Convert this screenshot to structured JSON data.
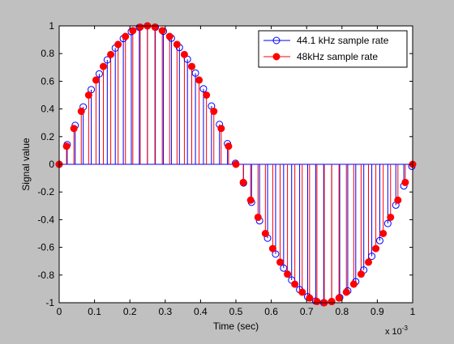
{
  "chart_data": {
    "type": "stem",
    "xlabel": "Time (sec)",
    "ylabel": "Signal value",
    "x_multiplier_label": "x 10",
    "x_multiplier_exponent": "-3",
    "xlim": [
      0,
      1
    ],
    "ylim": [
      -1,
      1
    ],
    "xticks": [
      0,
      0.1,
      0.2,
      0.3,
      0.4,
      0.5,
      0.6,
      0.7,
      0.8,
      0.9,
      1
    ],
    "xtick_labels": [
      "0",
      "0.1",
      "0.2",
      "0.3",
      "0.4",
      "0.5",
      "0.6",
      "0.7",
      "0.8",
      "0.9",
      "1"
    ],
    "yticks": [
      -1,
      -0.8,
      -0.6,
      -0.4,
      -0.2,
      0,
      0.2,
      0.4,
      0.6,
      0.8,
      1
    ],
    "ytick_labels": [
      "-1",
      "-0.8",
      "-0.6",
      "-0.4",
      "-0.2",
      "0",
      "0.2",
      "0.4",
      "0.6",
      "0.8",
      "1"
    ],
    "grid": false,
    "legend_position": "top-right",
    "signal_frequency_hz": 1000,
    "series": [
      {
        "name": "44.1 kHz sample rate",
        "sample_rate_hz": 44100,
        "marker": "open-circle",
        "color": "#0000ff"
      },
      {
        "name": "48kHz sample rate",
        "sample_rate_hz": 48000,
        "marker": "filled-circle",
        "color": "#ff0000"
      }
    ]
  }
}
